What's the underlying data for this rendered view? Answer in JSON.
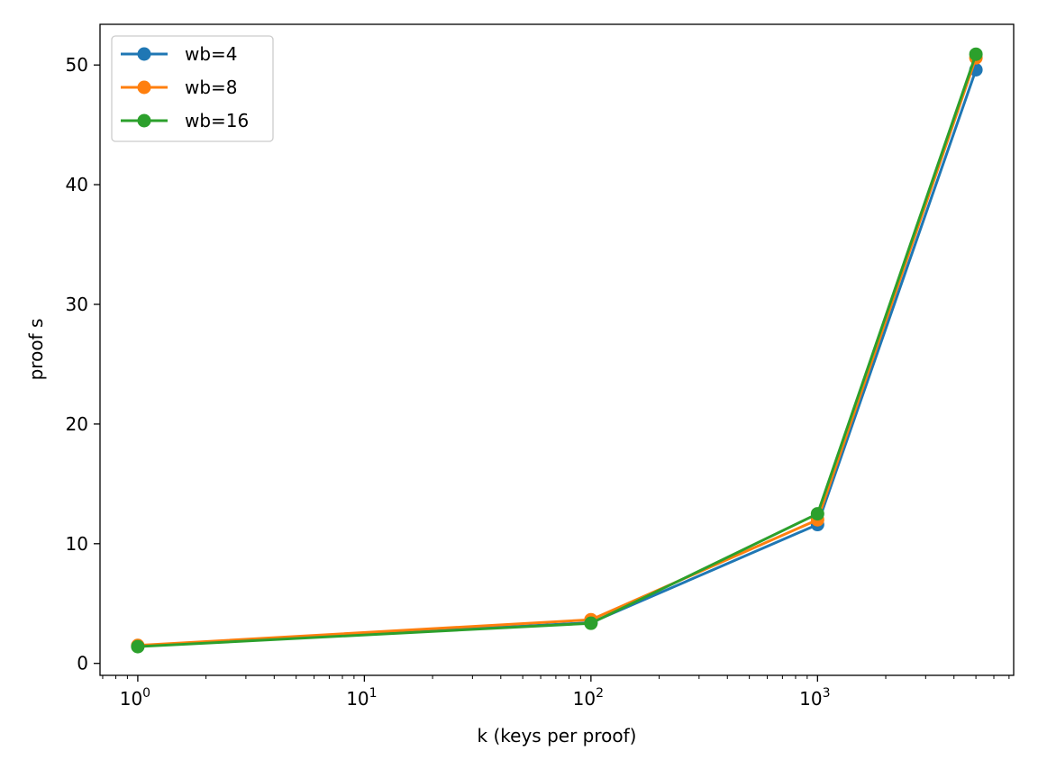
{
  "chart_data": {
    "type": "line",
    "title": "",
    "xlabel": "k (keys per proof)",
    "ylabel": "proof s",
    "x_scale": "log",
    "x": [
      1,
      100,
      1000,
      5000
    ],
    "xlim": [
      0.6813,
      7338
    ],
    "ylim": [
      -1.0,
      53.4
    ],
    "y_ticks": [
      0,
      10,
      20,
      30,
      40,
      50
    ],
    "x_ticks": [
      {
        "base": "10",
        "exp": "0"
      },
      {
        "base": "10",
        "exp": "1"
      },
      {
        "base": "10",
        "exp": "2"
      },
      {
        "base": "10",
        "exp": "3"
      }
    ],
    "x_tick_values": [
      1,
      10,
      100,
      1000
    ],
    "grid": false,
    "legend_position": "upper left",
    "series": [
      {
        "name": "wb=4",
        "color": "#1f77b4",
        "values": [
          1.45,
          3.4,
          11.6,
          49.6
        ]
      },
      {
        "name": "wb=8",
        "color": "#ff7f0e",
        "values": [
          1.5,
          3.65,
          12.0,
          50.6
        ]
      },
      {
        "name": "wb=16",
        "color": "#2ca02c",
        "values": [
          1.4,
          3.35,
          12.5,
          50.9
        ]
      }
    ]
  }
}
